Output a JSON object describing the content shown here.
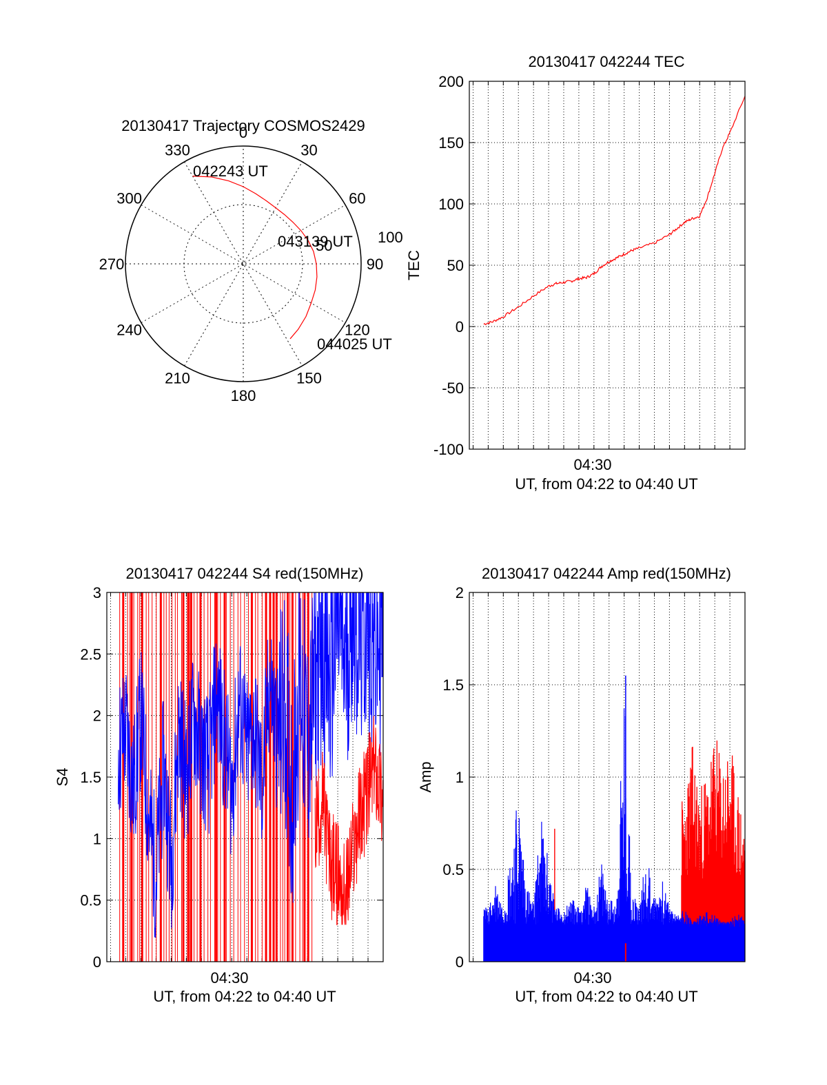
{
  "colors": {
    "red": "#ff0000",
    "blue": "#0000ff",
    "axis": "#000000",
    "grid": "#000000"
  },
  "chart_data": [
    {
      "id": "trajectory",
      "type": "polar",
      "title": "20130417 Trajectory COSMOS2429",
      "angle_labels": [
        "0",
        "30",
        "60",
        "90",
        "120",
        "150",
        "180",
        "210",
        "240",
        "270",
        "300",
        "330"
      ],
      "radius_labels": [
        "50",
        "100"
      ],
      "r_max": 100,
      "annotations": [
        {
          "text": "042243 UT",
          "az": 330,
          "r": 86
        },
        {
          "text": "043139 UT",
          "az": 60,
          "r": 41
        },
        {
          "text": "044025 UT",
          "az": 148,
          "r": 75
        }
      ],
      "track": {
        "color": "red",
        "az": [
          330,
          340,
          350,
          0,
          10,
          20,
          30,
          40,
          50,
          60,
          70,
          80,
          90,
          100,
          110,
          120,
          130,
          140,
          148
        ],
        "r": [
          86,
          78.5,
          71.5,
          65.5,
          60.5,
          57.0,
          55.0,
          54.5,
          55.0,
          56.5,
          58.5,
          60.5,
          62.0,
          63.5,
          65.0,
          66.5,
          69.5,
          72.5,
          75.0
        ]
      }
    },
    {
      "id": "tec",
      "type": "line",
      "title": "20130417 042244 TEC",
      "ylabel": "TEC",
      "xlabel": "UT, from 04:22 to 04:40 UT",
      "x_tick_label": "04:30",
      "x_tick_value": 30,
      "xlim": [
        21.75,
        40.0
      ],
      "ylim": [
        -100,
        200
      ],
      "yticks": [
        -100,
        -50,
        0,
        50,
        100,
        150,
        200
      ],
      "series": [
        {
          "color": "red",
          "x": [
            22.7,
            23.3,
            24.0,
            25.0,
            26.0,
            27.0,
            27.5,
            28.0,
            28.5,
            29.0,
            29.5,
            30.0,
            30.5,
            31.0,
            31.5,
            32.0,
            32.5,
            33.0,
            34.0,
            35.0,
            35.5,
            36.0,
            36.5,
            37.0,
            37.5,
            38.0,
            38.5,
            39.0,
            40.0
          ],
          "y": [
            2,
            4,
            8,
            16,
            25,
            33,
            35,
            36,
            37,
            39,
            40,
            43,
            49,
            53,
            56,
            59,
            62,
            64,
            68,
            75,
            80,
            85,
            88,
            90,
            105,
            125,
            145,
            158,
            188
          ]
        }
      ]
    },
    {
      "id": "s4",
      "type": "line",
      "title": "20130417 042244 S4 red(150MHz)",
      "ylabel": "S4",
      "xlabel": "UT, from 04:22 to 04:40 UT",
      "x_tick_label": "04:30",
      "x_tick_value": 30,
      "xlim": [
        21.75,
        40.0
      ],
      "ylim": [
        0,
        3
      ],
      "yticks": [
        "0",
        "0.5",
        "1",
        "1.5",
        "2",
        "2.5",
        "3"
      ],
      "series": [
        {
          "color": "blue",
          "x": [
            22.5,
            23.0,
            23.5,
            24.0,
            24.5,
            25.0,
            25.5,
            26.0,
            26.5,
            27.0,
            27.5,
            28.0,
            28.5,
            29.0,
            29.5,
            30.0,
            30.5,
            31.0,
            31.5,
            32.0,
            32.5,
            33.0,
            33.5,
            34.0,
            34.5,
            35.0,
            35.5,
            36.0,
            36.5,
            37.0,
            37.5,
            38.0,
            38.5,
            39.0,
            39.5,
            40.0
          ],
          "y": [
            1.7,
            1.9,
            1.4,
            2.0,
            1.2,
            0.7,
            1.6,
            0.8,
            1.9,
            1.5,
            2.0,
            1.7,
            1.6,
            2.2,
            1.8,
            1.4,
            2.1,
            1.7,
            1.9,
            1.4,
            2.3,
            1.8,
            2.1,
            1.3,
            2.4,
            1.7,
            2.3,
            2.6,
            2.2,
            2.8,
            2.4,
            2.9,
            2.6,
            2.8,
            2.5,
            2.7
          ]
        },
        {
          "color": "red",
          "x": [
            35.5,
            36.0,
            36.5,
            37.0,
            37.5,
            38.0,
            38.5,
            39.0,
            39.5,
            40.0
          ],
          "y": [
            1.1,
            1.3,
            0.8,
            0.7,
            0.5,
            0.9,
            1.2,
            1.4,
            1.6,
            1.3
          ]
        }
      ]
    },
    {
      "id": "amp",
      "type": "line",
      "title": "20130417 042244 Amp red(150MHz)",
      "ylabel": "Amp",
      "xlabel": "UT, from 04:22 to 04:40 UT",
      "x_tick_label": "04:30",
      "x_tick_value": 30,
      "xlim": [
        21.75,
        40.0
      ],
      "ylim": [
        0,
        2
      ],
      "yticks": [
        "0",
        "0.5",
        "1",
        "1.5",
        "2"
      ],
      "series": [
        {
          "color": "blue",
          "x": [
            22.5,
            23.0,
            23.5,
            24.0,
            24.5,
            25.0,
            25.5,
            26.0,
            26.5,
            27.0,
            27.5,
            28.0,
            28.5,
            29.0,
            29.5,
            30.0,
            30.5,
            31.0,
            31.5,
            32.0,
            32.5,
            33.0,
            33.5,
            34.0,
            34.5,
            35.0,
            35.5,
            36.0,
            36.5,
            37.0,
            37.5,
            38.0,
            38.5,
            39.0,
            39.5,
            40.0
          ],
          "y": [
            0.35,
            0.28,
            0.45,
            0.3,
            0.62,
            0.95,
            0.45,
            0.32,
            0.8,
            0.55,
            0.3,
            0.28,
            0.35,
            0.3,
            0.42,
            0.3,
            0.55,
            0.33,
            0.35,
            1.55,
            0.4,
            0.3,
            0.62,
            0.35,
            0.45,
            0.3,
            0.25,
            0.3,
            0.22,
            0.25,
            0.28,
            0.25,
            0.22,
            0.22,
            0.3,
            0.22
          ]
        },
        {
          "color": "red",
          "x": [
            36.0,
            36.5,
            37.0,
            37.5,
            38.0,
            38.5,
            39.0,
            39.5,
            40.0
          ],
          "y": [
            0.9,
            1.2,
            0.95,
            1.05,
            1.25,
            1.1,
            1.2,
            0.95,
            0.75
          ]
        }
      ]
    }
  ]
}
